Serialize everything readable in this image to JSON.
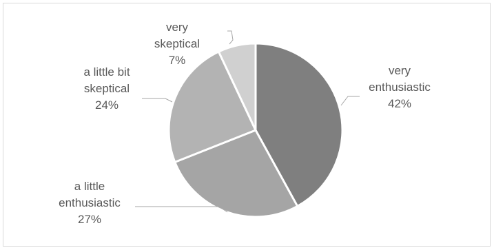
{
  "chart_data": {
    "type": "pie",
    "slices": [
      {
        "label_lines": [
          "very",
          "enthusiastic"
        ],
        "pct_text": "42%",
        "value": 42,
        "color": "#7f7f7f"
      },
      {
        "label_lines": [
          "a little",
          "enthusiastic"
        ],
        "pct_text": "27%",
        "value": 27,
        "color": "#a5a5a5"
      },
      {
        "label_lines": [
          "a little bit",
          "skeptical"
        ],
        "pct_text": "24%",
        "value": 24,
        "color": "#b3b3b3"
      },
      {
        "label_lines": [
          "very",
          "skeptical"
        ],
        "pct_text": "7%",
        "value": 7,
        "color": "#d0d0d0"
      }
    ],
    "start_angle": "top",
    "direction": "clockwise",
    "slice_border": "white",
    "legend": "none"
  }
}
